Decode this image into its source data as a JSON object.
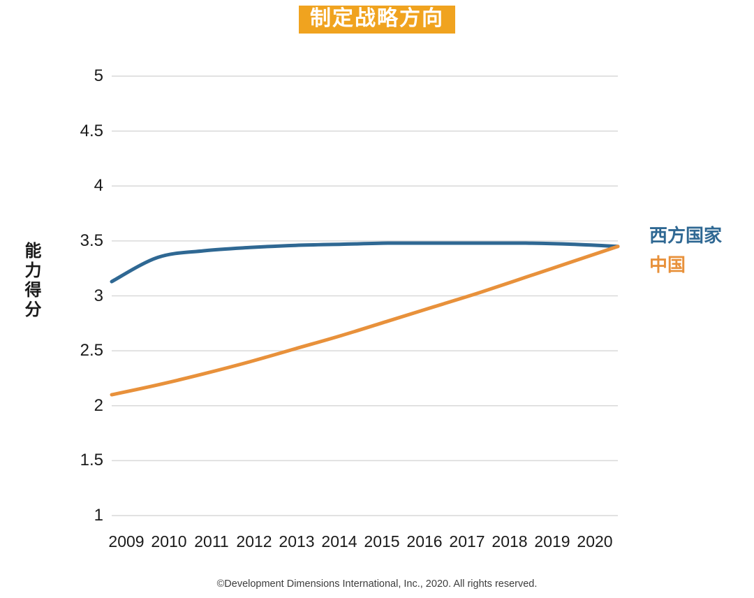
{
  "title": {
    "text": "制定战略方向",
    "bg_color": "#F0A31F",
    "text_color": "#FFFFFF"
  },
  "y_axis": {
    "title": "能力得分"
  },
  "legend": [
    {
      "label": "西方国家",
      "color": "#2F6893"
    },
    {
      "label": "中国",
      "color": "#E8913B"
    }
  ],
  "footer": {
    "text": "©Development Dimensions International, Inc., 2020. All rights reserved."
  },
  "colors": {
    "grid": "#D9D9D9",
    "axis_text": "#1a1a1a"
  },
  "chart_data": {
    "type": "line",
    "title": "制定战略方向",
    "xlabel": "",
    "ylabel": "能力得分",
    "categories": [
      "2009",
      "2010",
      "2011",
      "2012",
      "2013",
      "2014",
      "2015",
      "2016",
      "2017",
      "2018",
      "2019",
      "2020"
    ],
    "series": [
      {
        "name": "西方国家",
        "color": "#2F6893",
        "values": [
          3.13,
          3.35,
          3.41,
          3.44,
          3.46,
          3.47,
          3.48,
          3.48,
          3.48,
          3.48,
          3.47,
          3.45
        ]
      },
      {
        "name": "中国",
        "color": "#E8913B",
        "values": [
          2.1,
          2.19,
          2.29,
          2.4,
          2.52,
          2.64,
          2.77,
          2.9,
          3.03,
          3.17,
          3.31,
          3.45
        ]
      }
    ],
    "ylim": [
      1,
      5
    ],
    "y_tick_step": 0.5,
    "y_ticks": [
      5,
      4.5,
      4,
      3.5,
      3,
      2.5,
      2,
      1.5,
      1
    ],
    "grid": "horizontal",
    "legend_position": "right"
  }
}
